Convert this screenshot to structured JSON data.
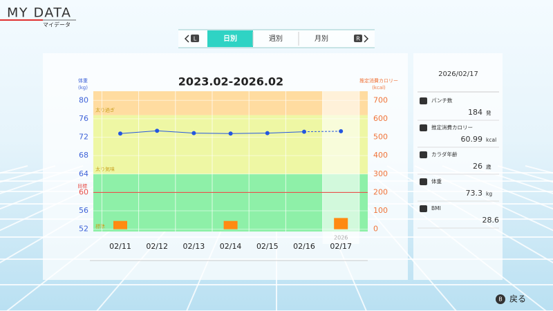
{
  "header": {
    "title": "MY DATA",
    "subtitle": "マイデータ"
  },
  "tabs": {
    "left_button": "L",
    "right_button": "R",
    "items": [
      "日別",
      "週別",
      "月別"
    ],
    "active": 0
  },
  "chart_data": {
    "type": "line",
    "title": "2023.02-2026.02",
    "ylabel": [
      "体重",
      "(kg)"
    ],
    "y2label": [
      "推定消費カロリー",
      "(kcal)"
    ],
    "categories": [
      "02/11",
      "02/12",
      "02/13",
      "02/14",
      "02/15",
      "02/16",
      "02/17"
    ],
    "year_label": "2026",
    "highlight_index": 6,
    "dashed_from_index": 5,
    "ylim": [
      51.5,
      82
    ],
    "yticks": [
      52,
      56,
      60,
      64,
      68,
      72,
      76,
      80
    ],
    "y2lim": [
      -12.5,
      750
    ],
    "y2ticks": [
      0,
      100,
      200,
      300,
      400,
      500,
      600,
      700
    ],
    "y_color": "#3f63d8",
    "y2_color": "#f0743a",
    "grid": true,
    "zones": [
      {
        "label": "太り過ぎ",
        "min": 76.8,
        "color": "#ffdca0"
      },
      {
        "label": "太り気味",
        "min": 64,
        "color": "#eef7a4"
      },
      {
        "label": "標準",
        "color": "#8ef0a8"
      }
    ],
    "target": {
      "label": "目標",
      "value": 60,
      "color": "#e8504a"
    },
    "series": [
      {
        "values": [
          72.8,
          73.4,
          72.9,
          72.8,
          72.9,
          73.2,
          73.3
        ],
        "color": "#2456e0"
      },
      {
        "values": [
          45,
          null,
          null,
          45,
          null,
          null,
          60.99
        ],
        "color": "#ff8a12",
        "axis": "y2",
        "type": "bar"
      }
    ]
  },
  "side_panel": {
    "date": "2026/02/17",
    "items": [
      {
        "label": "パンチ数",
        "value": "184",
        "unit": "発"
      },
      {
        "label": "推定消費カロリー",
        "value": "60.99",
        "unit": "kcal"
      },
      {
        "label": "カラダ年齢",
        "value": "26",
        "unit": "歳"
      },
      {
        "label": "体重",
        "value": "73.3",
        "unit": "kg"
      },
      {
        "label": "BMI",
        "value": "28.6"
      }
    ]
  },
  "footer": {
    "button": "B",
    "label": "戻る"
  }
}
